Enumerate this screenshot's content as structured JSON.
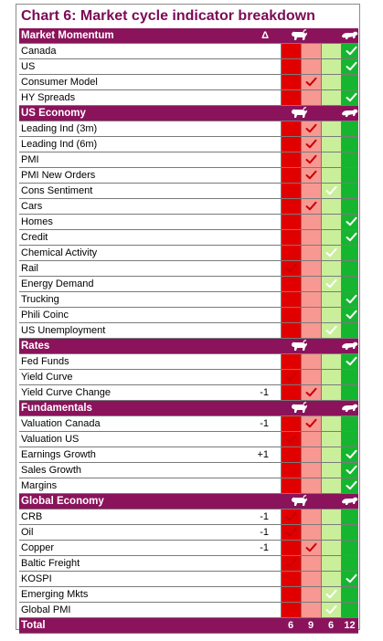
{
  "title": "Chart 6: Market cycle indicator breakdown",
  "colors": {
    "header": "#8a135b",
    "red": "#e00000",
    "pink": "#f79892",
    "lightgreen": "#c9ef9a",
    "green": "#16b530",
    "check_red": "#c80000",
    "check_green": "#ffffff"
  },
  "sections": [
    {
      "name": "Market Momentum",
      "delta_header": "Δ",
      "rows": [
        {
          "label": "Canada",
          "delta": "",
          "checks": [
            3
          ]
        },
        {
          "label": "US",
          "delta": "",
          "checks": [
            3
          ]
        },
        {
          "label": "Consumer Model",
          "delta": "",
          "checks": [
            1
          ]
        },
        {
          "label": "HY Spreads",
          "delta": "",
          "checks": [
            3
          ]
        }
      ]
    },
    {
      "name": "US Economy",
      "delta_header": "",
      "rows": [
        {
          "label": "Leading Ind (3m)",
          "delta": "",
          "checks": [
            1
          ]
        },
        {
          "label": "Leading Ind (6m)",
          "delta": "",
          "checks": [
            1
          ]
        },
        {
          "label": "PMI",
          "delta": "",
          "checks": [
            1
          ]
        },
        {
          "label": "PMI New Orders",
          "delta": "",
          "checks": [
            1
          ]
        },
        {
          "label": "Cons Sentiment",
          "delta": "",
          "checks": [
            2
          ]
        },
        {
          "label": "Cars",
          "delta": "",
          "checks": [
            1
          ]
        },
        {
          "label": "Homes",
          "delta": "",
          "checks": [
            3
          ]
        },
        {
          "label": "Credit",
          "delta": "",
          "checks": [
            3
          ]
        },
        {
          "label": "Chemical Activity",
          "delta": "",
          "checks": [
            2
          ]
        },
        {
          "label": "Rail",
          "delta": "",
          "checks": [
            0
          ]
        },
        {
          "label": "Energy Demand",
          "delta": "",
          "checks": [
            2
          ]
        },
        {
          "label": "Trucking",
          "delta": "",
          "checks": [
            3
          ]
        },
        {
          "label": "Phili Coinc",
          "delta": "",
          "checks": [
            3
          ]
        },
        {
          "label": "US Unemployment",
          "delta": "",
          "checks": [
            2
          ]
        }
      ]
    },
    {
      "name": "Rates",
      "delta_header": "",
      "rows": [
        {
          "label": "Fed Funds",
          "delta": "",
          "checks": [
            3
          ]
        },
        {
          "label": "Yield Curve",
          "delta": "",
          "checks": [
            0
          ]
        },
        {
          "label": "Yield Curve Change",
          "delta": "-1",
          "checks": [
            1
          ]
        }
      ]
    },
    {
      "name": "Fundamentals",
      "delta_header": "",
      "rows": [
        {
          "label": "Valuation Canada",
          "delta": "-1",
          "checks": [
            1
          ]
        },
        {
          "label": "Valuation US",
          "delta": "",
          "checks": [
            0
          ]
        },
        {
          "label": "Earnings Growth",
          "delta": "+1",
          "checks": [
            3
          ]
        },
        {
          "label": "Sales Growth",
          "delta": "",
          "checks": [
            3
          ]
        },
        {
          "label": "Margins",
          "delta": "",
          "checks": [
            3
          ]
        }
      ]
    },
    {
      "name": "Global Economy",
      "delta_header": "",
      "rows": [
        {
          "label": "CRB",
          "delta": "-1",
          "checks": [
            0
          ]
        },
        {
          "label": "Oil",
          "delta": "-1",
          "checks": [
            0
          ]
        },
        {
          "label": "Copper",
          "delta": "-1",
          "checks": [
            1
          ]
        },
        {
          "label": "Baltic Freight",
          "delta": "",
          "checks": [
            0
          ]
        },
        {
          "label": "KOSPI",
          "delta": "",
          "checks": [
            3
          ]
        },
        {
          "label": "Emerging Mkts",
          "delta": "",
          "checks": [
            2
          ]
        },
        {
          "label": "Global PMI",
          "delta": "",
          "checks": [
            2
          ]
        }
      ]
    }
  ],
  "total": {
    "label": "Total",
    "values": [
      "6",
      "9",
      "6",
      "12"
    ]
  },
  "icons": {
    "left": "bull-icon",
    "right": "bear-icon"
  }
}
